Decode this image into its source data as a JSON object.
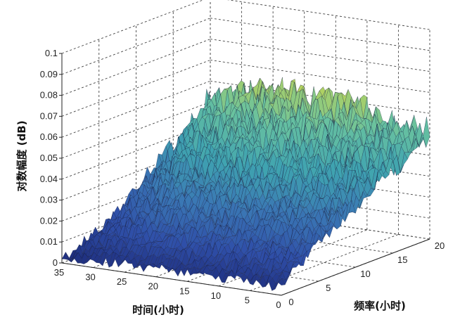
{
  "chart_data": {
    "type": "surface",
    "title": "",
    "zlabel": "对数幅度 (dB)",
    "xlabel": "时间(小时)",
    "ylabel": "频率(小时)",
    "z_ticks": [
      "0",
      "0.01",
      "0.02",
      "0.03",
      "0.04",
      "0.05",
      "0.06",
      "0.07",
      "0.08",
      "0.09",
      "0.1"
    ],
    "time_ticks": [
      "35",
      "30",
      "25",
      "20",
      "15",
      "10",
      "5",
      "0"
    ],
    "freq_ticks": [
      "0",
      "5",
      "10",
      "15",
      "20"
    ],
    "zlim": [
      0,
      0.1
    ],
    "time_range": [
      0,
      35
    ],
    "freq_range": [
      0,
      20
    ],
    "grid": true,
    "colormap": [
      "#1c2a78",
      "#2f4fa8",
      "#3a76b4",
      "#3fa3b0",
      "#67c1a0",
      "#b9d35a"
    ],
    "surface_profile": {
      "description_free": true,
      "time_points": [
        0,
        5,
        10,
        15,
        20,
        25,
        30,
        35
      ],
      "freq_points": [
        0,
        5,
        10,
        15,
        20
      ],
      "z_values": [
        [
          0.004,
          0.018,
          0.03,
          0.04,
          0.05
        ],
        [
          0.004,
          0.02,
          0.032,
          0.043,
          0.053
        ],
        [
          0.004,
          0.021,
          0.034,
          0.046,
          0.056
        ],
        [
          0.004,
          0.022,
          0.036,
          0.048,
          0.059
        ],
        [
          0.004,
          0.022,
          0.037,
          0.05,
          0.061
        ],
        [
          0.004,
          0.021,
          0.035,
          0.049,
          0.06
        ],
        [
          0.003,
          0.015,
          0.03,
          0.045,
          0.058
        ],
        [
          0.002,
          0.008,
          0.02,
          0.035,
          0.05
        ]
      ]
    }
  }
}
